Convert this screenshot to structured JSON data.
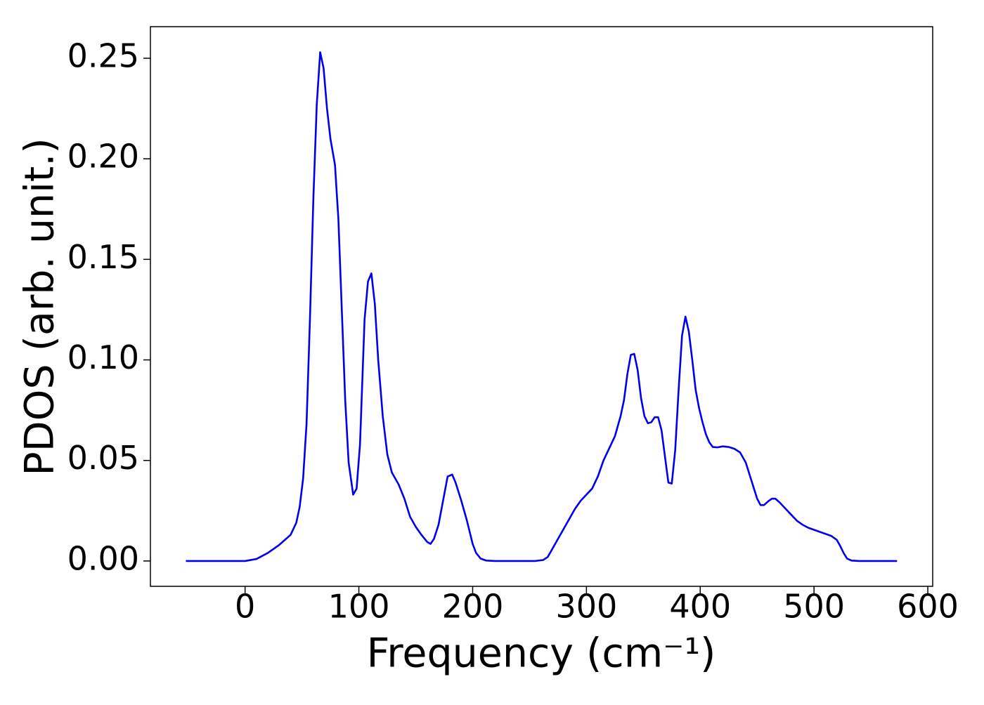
{
  "chart_data": {
    "type": "line",
    "x_label": "Frequency (cm⁻¹)",
    "y_label": "PDOS (arb. unit.)",
    "xlim": [
      -83.2,
      604.3
    ],
    "ylim": [
      -0.0126,
      0.2657
    ],
    "xticks": [
      0,
      100,
      200,
      300,
      400,
      500,
      600
    ],
    "yticks": [
      {
        "value": 0,
        "label": "0.00"
      },
      0.05,
      {
        "value": 0.1,
        "label": "0.10"
      },
      0.15,
      {
        "value": 0.2,
        "label": "0.20"
      },
      0.25
    ],
    "x": [
      -52,
      0,
      10,
      20,
      30,
      40,
      45,
      48,
      51,
      54,
      57,
      60,
      63,
      66,
      69,
      72,
      75,
      79,
      82,
      85,
      88,
      91,
      95,
      98,
      101,
      105,
      108,
      111,
      114,
      117,
      121,
      125,
      129,
      135,
      140,
      145,
      150,
      155,
      160,
      163,
      166,
      170,
      173,
      176,
      178,
      182,
      185,
      190,
      195,
      200,
      203,
      207,
      212,
      220,
      255,
      262,
      266,
      270,
      275,
      280,
      290,
      295,
      305,
      310,
      315,
      320,
      325,
      330,
      333,
      336,
      339,
      342,
      345,
      348,
      351,
      354,
      357,
      360,
      363,
      366,
      369,
      372,
      375,
      378,
      381,
      384,
      387,
      390,
      393,
      396,
      399,
      402,
      405,
      408,
      411,
      415,
      420,
      425,
      430,
      435,
      440,
      445,
      450,
      453,
      456,
      460,
      463,
      466,
      470,
      475,
      480,
      485,
      490,
      495,
      500,
      505,
      510,
      515,
      520,
      523,
      526,
      529,
      533,
      540,
      573
    ],
    "series": [
      {
        "name": "PDOS",
        "color": "#0000ee",
        "values": [
          0,
          0,
          0.001,
          0.004,
          0.008,
          0.013,
          0.019,
          0.027,
          0.041,
          0.068,
          0.12,
          0.18,
          0.227,
          0.253,
          0.245,
          0.225,
          0.21,
          0.197,
          0.17,
          0.125,
          0.08,
          0.049,
          0.033,
          0.036,
          0.058,
          0.12,
          0.139,
          0.143,
          0.128,
          0.1,
          0.072,
          0.053,
          0.044,
          0.038,
          0.031,
          0.022,
          0.017,
          0.013,
          0.0095,
          0.0085,
          0.011,
          0.018,
          0.027,
          0.036,
          0.042,
          0.043,
          0.039,
          0.03,
          0.02,
          0.0085,
          0.004,
          0.0012,
          0.0002,
          0,
          0,
          0.0005,
          0.002,
          0.006,
          0.011,
          0.016,
          0.026,
          0.03,
          0.036,
          0.042,
          0.05,
          0.056,
          0.062,
          0.072,
          0.08,
          0.093,
          0.1025,
          0.103,
          0.095,
          0.081,
          0.072,
          0.0685,
          0.069,
          0.0715,
          0.0715,
          0.065,
          0.052,
          0.039,
          0.0385,
          0.055,
          0.085,
          0.112,
          0.1215,
          0.114,
          0.1,
          0.085,
          0.076,
          0.069,
          0.063,
          0.059,
          0.0567,
          0.0565,
          0.057,
          0.0567,
          0.0558,
          0.054,
          0.049,
          0.04,
          0.031,
          0.0278,
          0.0278,
          0.0298,
          0.031,
          0.031,
          0.029,
          0.026,
          0.023,
          0.02,
          0.018,
          0.0165,
          0.0155,
          0.0145,
          0.0135,
          0.0125,
          0.0105,
          0.0075,
          0.004,
          0.0012,
          0.0002,
          0,
          0
        ]
      }
    ]
  }
}
